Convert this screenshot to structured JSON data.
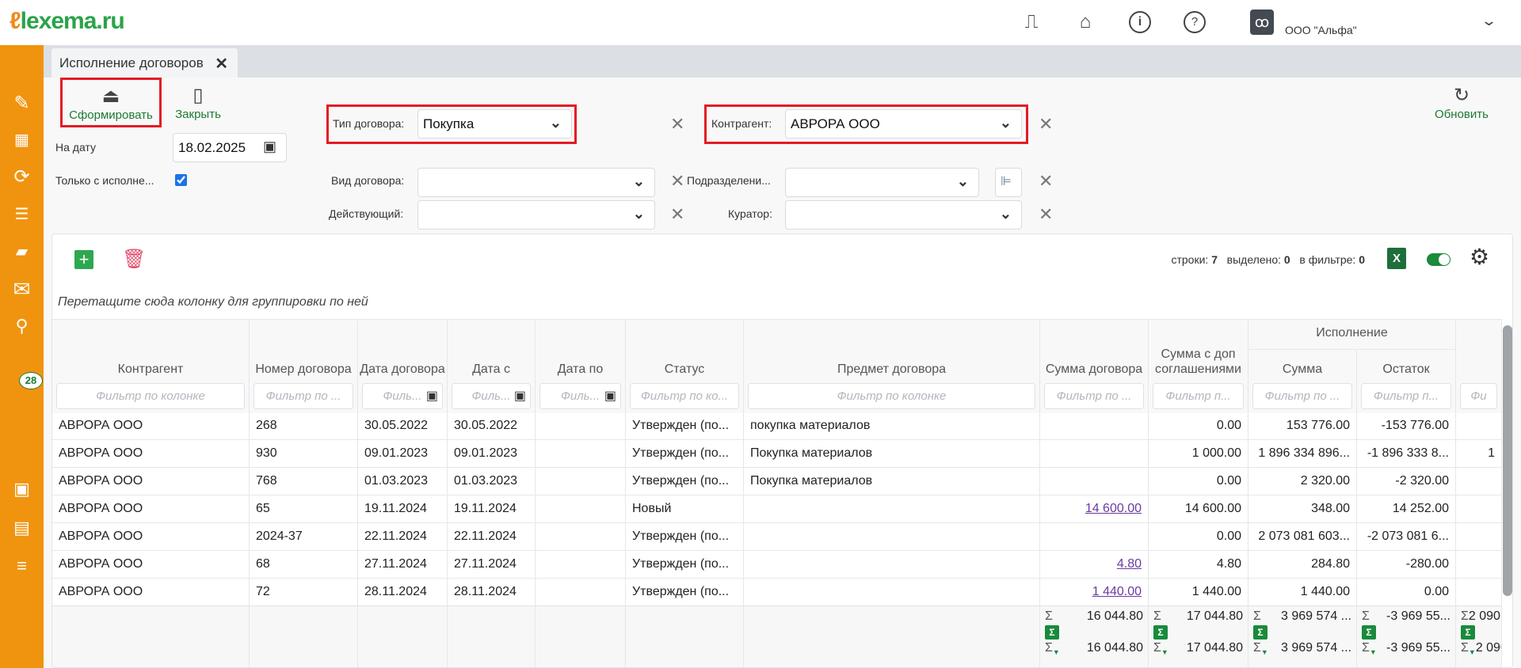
{
  "app": {
    "logo": "lexema.ru",
    "logo_prefix": "L",
    "company": "ООО \"Альфа\""
  },
  "header_icons": [
    "document-icon",
    "home-icon",
    "info-icon",
    "help-icon"
  ],
  "sidebar": {
    "icons": [
      "pencil-icon",
      "qr-code-icon",
      "sync-icon",
      "import-list-icon",
      "folder-icon",
      "mail-icon",
      "search-icon",
      "calendar-icon",
      "schedule-table-icon",
      "checklist-icon"
    ],
    "mail_badge": "28"
  },
  "tab": {
    "label": "Исполнение договоров"
  },
  "toolbar": {
    "generate": "Сформировать",
    "close": "Закрыть",
    "refresh": "Обновить"
  },
  "filters": {
    "on_date_label": "На дату",
    "on_date_value": "18.02.2025",
    "only_exec_label": "Только с исполне...",
    "only_exec_checked": true,
    "contract_type_label": "Тип договора:",
    "contract_type_value": "Покупка",
    "contract_kind_label": "Вид договора:",
    "contract_kind_value": "",
    "active_label": "Действующий:",
    "active_value": "",
    "counterparty_label": "Контрагент:",
    "counterparty_value": "АВРОРА ООО",
    "division_label": "Подразделени...",
    "division_value": "",
    "curator_label": "Куратор:",
    "curator_value": ""
  },
  "grid": {
    "stats": {
      "rows_label": "строки:",
      "rows": "7",
      "selected_label": "выделено:",
      "selected": "0",
      "in_filter_label": "в фильтре:",
      "in_filter": "0"
    },
    "group_hint": "Перетащите сюда колонку для группировки по ней",
    "group_header": "Исполнение",
    "columns": [
      {
        "label": "Контрагент",
        "filter": "Фильтр по колонке"
      },
      {
        "label": "Номер договора",
        "filter": "Фильтр по ..."
      },
      {
        "label": "Дата договора",
        "filter": "Филь...",
        "date": true
      },
      {
        "label": "Дата с",
        "filter": "Филь...",
        "date": true
      },
      {
        "label": "Дата по",
        "filter": "Филь...",
        "date": true
      },
      {
        "label": "Статус",
        "filter": "Фильтр по ко..."
      },
      {
        "label": "Предмет договора",
        "filter": "Фильтр по колонке"
      },
      {
        "label": "Сумма договора",
        "filter": "Фильтр по ..."
      },
      {
        "label": "Сумма с доп соглашениями",
        "filter": "Фильтр п..."
      },
      {
        "label": "Сумма",
        "filter": "Фильтр по ..."
      },
      {
        "label": "Остаток",
        "filter": "Фильтр п..."
      },
      {
        "label": "",
        "filter": "Фи"
      }
    ],
    "rows": [
      [
        "АВРОРА ООО",
        "268",
        "30.05.2022",
        "30.05.2022",
        "",
        "Утвержден (по...",
        "покупка материалов",
        "",
        "0.00",
        "153 776.00",
        "-153 776.00",
        ""
      ],
      [
        "АВРОРА ООО",
        "930",
        "09.01.2023",
        "09.01.2023",
        "",
        "Утвержден (по...",
        "Покупка материалов",
        "",
        "1 000.00",
        "1 896 334 896...",
        "-1 896 333 8...",
        "1"
      ],
      [
        "АВРОРА ООО",
        "768",
        "01.03.2023",
        "01.03.2023",
        "",
        "Утвержден (по...",
        "Покупка материалов",
        "",
        "0.00",
        "2 320.00",
        "-2 320.00",
        ""
      ],
      [
        "АВРОРА ООО",
        "65",
        "19.11.2024",
        "19.11.2024",
        "",
        "Новый",
        "",
        "14 600.00",
        "14 600.00",
        "348.00",
        "14 252.00",
        ""
      ],
      [
        "АВРОРА ООО",
        "2024-37",
        "22.11.2024",
        "22.11.2024",
        "",
        "Утвержден (по...",
        "",
        "",
        "0.00",
        "2 073 081 603...",
        "-2 073 081 6...",
        ""
      ],
      [
        "АВРОРА ООО",
        "68",
        "27.11.2024",
        "27.11.2024",
        "",
        "Утвержден (по...",
        "",
        "4.80",
        "4.80",
        "284.80",
        "-280.00",
        ""
      ],
      [
        "АВРОРА ООО",
        "72",
        "28.11.2024",
        "28.11.2024",
        "",
        "Утвержден (по...",
        "",
        "1 440.00",
        "1 440.00",
        "1 440.00",
        "0.00",
        ""
      ]
    ],
    "totals": [
      {
        "sum": "16 044.80",
        "filtered": "16 044.80"
      },
      {
        "sum": "17 044.80",
        "filtered": "17 044.80"
      },
      {
        "sum": "3 969 574 ...",
        "filtered": "3 969 574 ..."
      },
      {
        "sum": "-3 969 55...",
        "filtered": "-3 969 55..."
      },
      {
        "sum": "2 090",
        "filtered": "2 090"
      }
    ],
    "sigma": "Σ"
  },
  "colors": {
    "sidebar": "#f0940f",
    "accent_green": "#1d7a34",
    "highlight_red": "#e31b23",
    "link": "#6a3aa0"
  }
}
